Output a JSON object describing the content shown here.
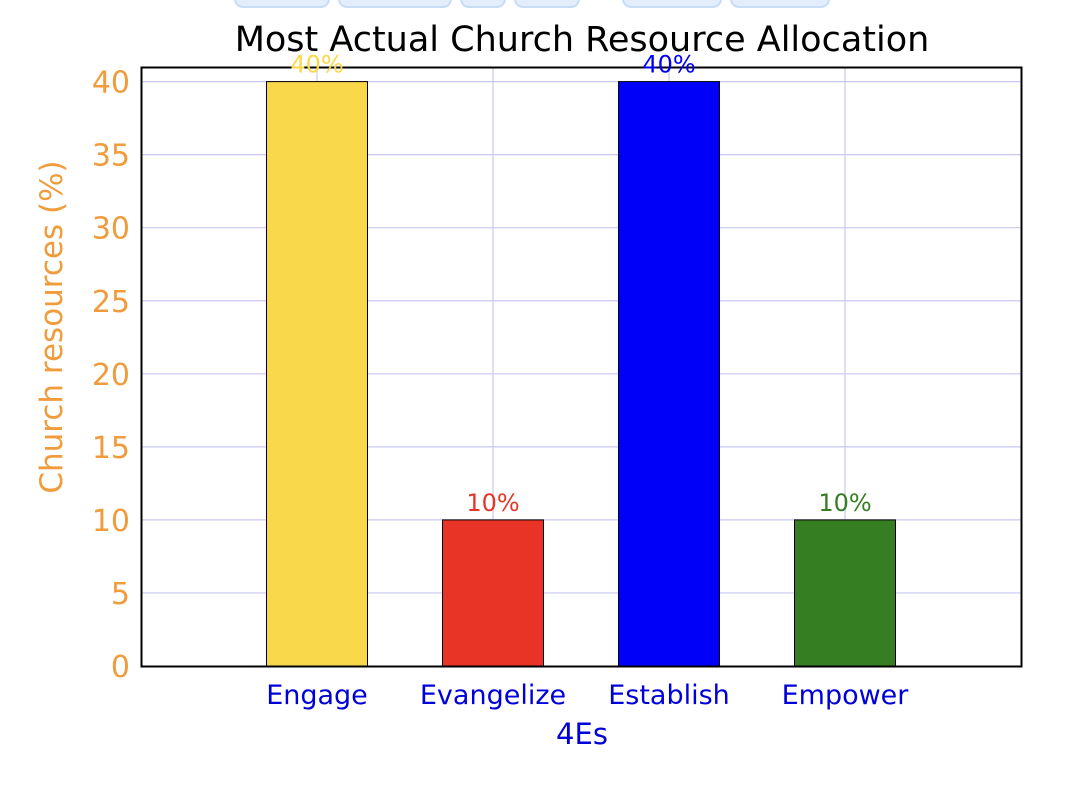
{
  "chart_data": {
    "type": "bar",
    "title": "Most Actual Church Resource Allocation",
    "xlabel": "4Es",
    "ylabel": "Church resources (%)",
    "categories": [
      "Engage",
      "Evangelize",
      "Establish",
      "Empower"
    ],
    "values": [
      40,
      10,
      40,
      10
    ],
    "data_labels": [
      "40%",
      "10%",
      "40%",
      "10%"
    ],
    "bar_colors": [
      "#f9d84a",
      "#e83427",
      "#0000fa",
      "#367e22"
    ],
    "ylim": [
      0,
      41
    ],
    "yticks": [
      0,
      5,
      10,
      15,
      20,
      25,
      30,
      35,
      40
    ],
    "grid": true,
    "legend": "none",
    "colors": {
      "title": "#000000",
      "ylabel": "#f09c3c",
      "yticks": "#f09c3c",
      "xlabel": "#0000d8",
      "xticks": "#0000d8",
      "grid": "#c8c8f0"
    }
  }
}
